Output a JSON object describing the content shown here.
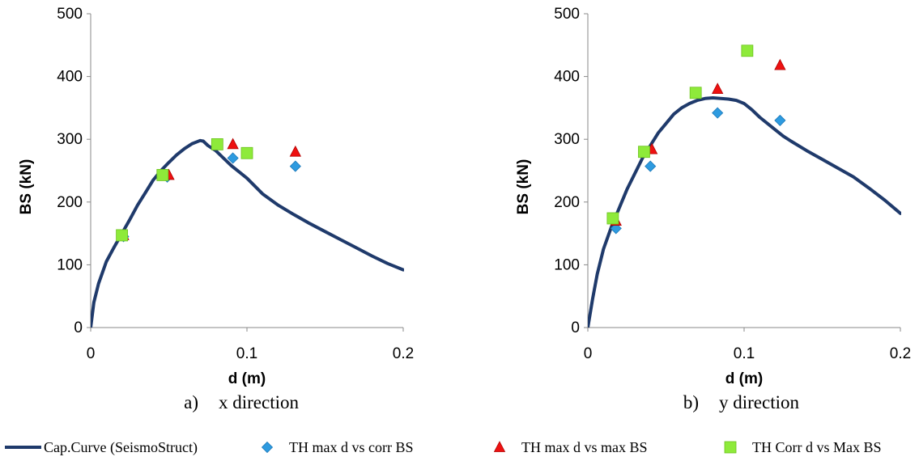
{
  "chart_data": [
    {
      "type": "scatter",
      "caption_letter": "a)",
      "caption_text": "x direction",
      "xlabel": "d (m)",
      "ylabel": "BS (kN)",
      "xlim": [
        0,
        0.2
      ],
      "ylim": [
        0,
        500
      ],
      "x_ticks": [
        "0",
        "0.1",
        "0.2"
      ],
      "y_ticks": [
        "0",
        "100",
        "200",
        "300",
        "400",
        "500"
      ],
      "x_tick_values": [
        0,
        0.1,
        0.2
      ],
      "y_tick_values": [
        0,
        100,
        200,
        300,
        400,
        500
      ],
      "grid": false,
      "series": [
        {
          "name": "Cap.Curve (SeismoStruct)",
          "kind": "line",
          "x": [
            0,
            0.002,
            0.005,
            0.01,
            0.015,
            0.02,
            0.025,
            0.03,
            0.035,
            0.04,
            0.045,
            0.05,
            0.055,
            0.06,
            0.065,
            0.07,
            0.072,
            0.075,
            0.08,
            0.085,
            0.09,
            0.095,
            0.1,
            0.11,
            0.12,
            0.13,
            0.14,
            0.15,
            0.16,
            0.17,
            0.18,
            0.19,
            0.2
          ],
          "y": [
            0,
            40,
            70,
            105,
            128,
            150,
            172,
            195,
            215,
            235,
            250,
            263,
            275,
            285,
            293,
            298,
            297,
            290,
            282,
            270,
            258,
            248,
            238,
            213,
            195,
            180,
            166,
            153,
            140,
            127,
            114,
            102,
            92
          ]
        },
        {
          "name": "TH max d vs corr BS",
          "kind": "diamond",
          "x": [
            0.021,
            0.049,
            0.091,
            0.131
          ],
          "y": [
            145,
            240,
            270,
            257
          ]
        },
        {
          "name": "TH max d vs max BS",
          "kind": "triangle",
          "x": [
            0.021,
            0.05,
            0.091,
            0.131
          ],
          "y": [
            147,
            243,
            292,
            280
          ]
        },
        {
          "name": "TH Corr d vs Max BS",
          "kind": "square",
          "x": [
            0.02,
            0.046,
            0.081,
            0.1
          ],
          "y": [
            147,
            243,
            292,
            278
          ]
        }
      ]
    },
    {
      "type": "scatter",
      "caption_letter": "b)",
      "caption_text": "y direction",
      "xlabel": "d (m)",
      "ylabel": "BS (kN)",
      "xlim": [
        0,
        0.2
      ],
      "ylim": [
        0,
        500
      ],
      "x_ticks": [
        "0",
        "0.1",
        "0.2"
      ],
      "y_ticks": [
        "0",
        "100",
        "200",
        "300",
        "400",
        "500"
      ],
      "x_tick_values": [
        0,
        0.1,
        0.2
      ],
      "y_tick_values": [
        0,
        100,
        200,
        300,
        400,
        500
      ],
      "grid": false,
      "series": [
        {
          "name": "Cap.Curve (SeismoStruct)",
          "kind": "line",
          "x": [
            0,
            0.003,
            0.006,
            0.01,
            0.015,
            0.02,
            0.025,
            0.03,
            0.035,
            0.04,
            0.045,
            0.05,
            0.055,
            0.06,
            0.065,
            0.07,
            0.075,
            0.08,
            0.085,
            0.09,
            0.095,
            0.1,
            0.105,
            0.11,
            0.115,
            0.12,
            0.125,
            0.13,
            0.14,
            0.15,
            0.16,
            0.17,
            0.18,
            0.19,
            0.2
          ],
          "y": [
            0,
            45,
            85,
            125,
            160,
            190,
            220,
            245,
            270,
            290,
            310,
            325,
            340,
            350,
            357,
            362,
            365,
            366,
            365,
            364,
            362,
            357,
            347,
            335,
            325,
            315,
            305,
            297,
            282,
            268,
            254,
            240,
            222,
            203,
            182
          ]
        },
        {
          "name": "TH max d vs corr BS",
          "kind": "diamond",
          "x": [
            0.018,
            0.04,
            0.083,
            0.123
          ],
          "y": [
            158,
            257,
            342,
            330
          ]
        },
        {
          "name": "TH max d vs max BS",
          "kind": "triangle",
          "x": [
            0.018,
            0.041,
            0.083,
            0.123
          ],
          "y": [
            170,
            284,
            380,
            418
          ]
        },
        {
          "name": "TH Corr d vs Max BS",
          "kind": "square",
          "x": [
            0.016,
            0.036,
            0.069,
            0.102
          ],
          "y": [
            174,
            280,
            374,
            441
          ]
        }
      ]
    }
  ],
  "legend": {
    "placement": "bottom",
    "items": [
      {
        "label": "Cap.Curve (SeismoStruct)",
        "kind": "line"
      },
      {
        "label": "TH max d vs corr BS",
        "kind": "diamond"
      },
      {
        "label": "TH max d vs max BS",
        "kind": "triangle"
      },
      {
        "label": "TH Corr d vs Max BS",
        "kind": "square"
      }
    ]
  },
  "colors": {
    "curve": "#1f3a6b",
    "diamond": "#2e9be0",
    "triangle": "#ee1111",
    "square": "#8eea3a",
    "axis": "#888888"
  }
}
